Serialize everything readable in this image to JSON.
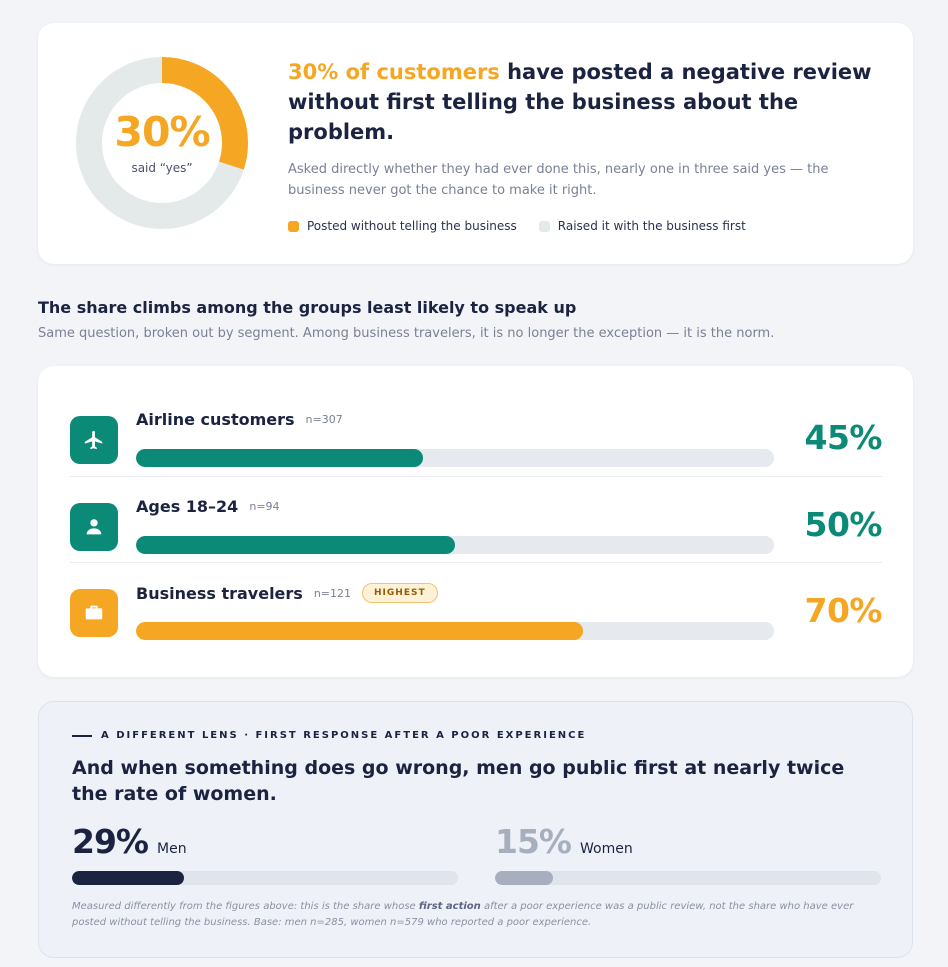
{
  "hero": {
    "donut_value_percent": 30,
    "donut_center_value": "30%",
    "donut_center_label": "said “yes”",
    "headline_accent": "30% of customers",
    "headline_rest": " have posted a negative review without first telling the business about the problem.",
    "body": "Asked directly whether they had ever done this, nearly one in three said yes — the business never got the chance to make it right.",
    "legend": [
      {
        "label": "Posted without telling the business",
        "color": "#f5a623"
      },
      {
        "label": "Raised it with the business first",
        "color": "#e4e9ea"
      }
    ]
  },
  "segments": {
    "title": "The share climbs among the groups least likely to speak up",
    "subtitle": "Same question, broken out by segment. Among business travelers, it is no longer the exception — it is the norm.",
    "rows": [
      {
        "name": "Airline customers",
        "n": "n=307",
        "percent_label": "45%",
        "value": 45,
        "color": "#0b8a78",
        "icon": "airplane-icon",
        "badge": ""
      },
      {
        "name": "Ages 18–24",
        "n": "n=94",
        "percent_label": "50%",
        "value": 50,
        "color": "#0b8a78",
        "icon": "person-icon",
        "badge": ""
      },
      {
        "name": "Business travelers",
        "n": "n=121",
        "percent_label": "70%",
        "value": 70,
        "color": "#f5a623",
        "icon": "briefcase-icon",
        "badge": "HIGHEST"
      }
    ]
  },
  "lens": {
    "eyebrow": "A DIFFERENT LENS · FIRST RESPONSE AFTER A POOR EXPERIENCE",
    "title": "And when something does go wrong, men go public first at nearly twice the rate of women.",
    "stats": [
      {
        "percent_label": "29%",
        "label": "Men",
        "value": 29,
        "color": "#1b2340"
      },
      {
        "percent_label": "15%",
        "label": "Women",
        "value": 15,
        "color": "#a7afbf"
      }
    ],
    "footnote_before": "Measured differently from the figures above: this is the share whose ",
    "footnote_emphasis": "first action",
    "footnote_after": " after a poor experience was a public review, not the share who have ever posted without telling the business. Base: men n=285, women n=579 who reported a poor experience."
  }
}
